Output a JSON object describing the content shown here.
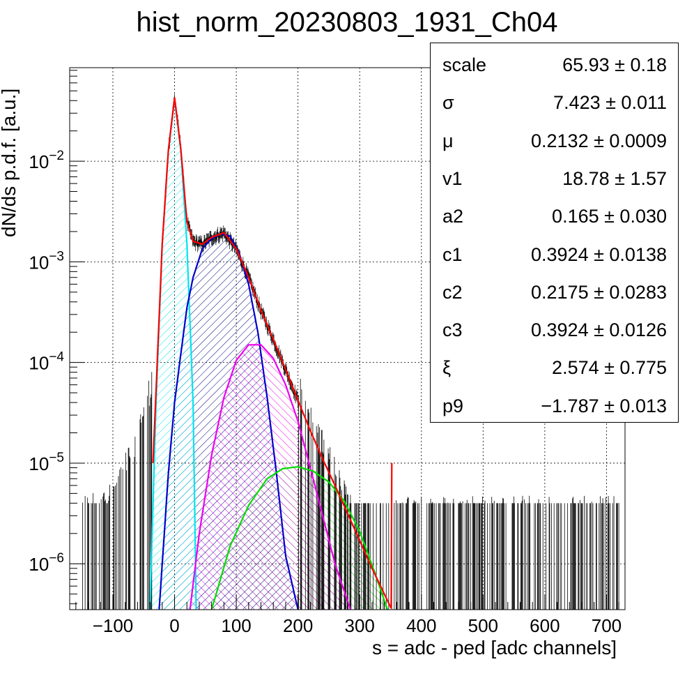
{
  "title": "hist_norm_20230803_1931_Ch04",
  "chart_data": {
    "type": "histogram_with_fit",
    "title": "hist_norm_20230803_1931_Ch04",
    "xlabel": "s = adc - ped [adc channels]",
    "ylabel": "dN/ds p.d.f. [a.u.]",
    "xlim": [
      -170,
      730
    ],
    "ylim": [
      3.5e-07,
      0.085
    ],
    "yscale": "log",
    "grid": true,
    "xticks": [
      -100,
      0,
      100,
      200,
      300,
      400,
      500,
      600,
      700
    ],
    "xtick_labels": [
      "−100",
      "0",
      "100",
      "200",
      "300",
      "400",
      "500",
      "600",
      "700"
    ],
    "yticks": [
      1e-06,
      1e-05,
      0.0001,
      0.001,
      0.01
    ],
    "ytick_labels": [
      {
        "base": "10",
        "exp": "−6"
      },
      {
        "base": "10",
        "exp": "−5"
      },
      {
        "base": "10",
        "exp": "−4"
      },
      {
        "base": "10",
        "exp": "−3"
      },
      {
        "base": "10",
        "exp": "−2"
      }
    ],
    "colors": {
      "data": "#000000",
      "total_fit": "#ff0000",
      "pedestal": "#00e5ee",
      "one_pe": "#0000cc",
      "two_pe": "#ee00ee",
      "three_pe": "#00dd00"
    },
    "components": [
      {
        "key": "pedestal",
        "x": [
          -40,
          -30,
          -20,
          -10,
          0,
          10,
          20,
          30,
          35
        ],
        "y": [
          3.5e-07,
          4e-05,
          0.0015,
          0.013,
          0.042,
          0.013,
          0.0015,
          4e-05,
          3.5e-07
        ]
      },
      {
        "key": "one_pe",
        "x": [
          -25,
          -10,
          0,
          10,
          20,
          30,
          45,
          60,
          75,
          90,
          105,
          120,
          135,
          150,
          165,
          180,
          200
        ],
        "y": [
          3.5e-07,
          8e-06,
          4e-05,
          0.00012,
          0.00035,
          0.0007,
          0.00135,
          0.0017,
          0.0019,
          0.0018,
          0.0012,
          0.0006,
          0.0002,
          4.5e-05,
          8e-06,
          1.2e-06,
          3.5e-07
        ]
      },
      {
        "key": "two_pe",
        "x": [
          25,
          40,
          60,
          80,
          100,
          120,
          140,
          160,
          180,
          200,
          220,
          240,
          260,
          285
        ],
        "y": [
          3.5e-07,
          2e-06,
          1.2e-05,
          4.5e-05,
          0.000105,
          0.00015,
          0.00015,
          0.00011,
          6e-05,
          2.6e-05,
          9e-06,
          3e-06,
          1e-06,
          3.5e-07
        ]
      },
      {
        "key": "three_pe",
        "x": [
          60,
          90,
          120,
          150,
          175,
          200,
          225,
          250,
          275,
          300,
          325,
          345
        ],
        "y": [
          3.5e-07,
          1.5e-06,
          3.8e-06,
          7e-06,
          8.8e-06,
          9.2e-06,
          8.3e-06,
          6.5e-06,
          4.2e-06,
          2.1e-06,
          8e-07,
          3.5e-07
        ]
      },
      {
        "key": "total_fit",
        "x": [
          -35,
          -20,
          -10,
          0,
          10,
          20,
          30,
          45,
          60,
          80,
          100,
          120,
          140,
          160,
          180,
          200,
          220,
          240,
          260,
          280,
          300,
          320,
          340,
          352
        ],
        "y": [
          1e-05,
          0.0015,
          0.013,
          0.043,
          0.0135,
          0.0025,
          0.0016,
          0.0015,
          0.00175,
          0.00195,
          0.00135,
          0.0007,
          0.00033,
          0.00017,
          8.5e-05,
          4.2e-05,
          2.1e-05,
          1.1e-05,
          6e-06,
          3.2e-06,
          1.7e-06,
          9e-07,
          5e-07,
          3.5e-07
        ]
      }
    ]
  },
  "stats": [
    {
      "name": "scale",
      "value": "65.93 ± 0.18"
    },
    {
      "name": "σ",
      "value": "7.423 ± 0.011"
    },
    {
      "name": "μ",
      "value": "0.2132 ± 0.0009"
    },
    {
      "name": "v1",
      "value": "18.78 ± 1.57"
    },
    {
      "name": "a2",
      "value": "0.165 ± 0.030"
    },
    {
      "name": "c1",
      "value": "0.3924 ± 0.0138"
    },
    {
      "name": "c2",
      "value": "0.2175 ± 0.0283"
    },
    {
      "name": "c3",
      "value": "0.3924 ± 0.0126"
    },
    {
      "name": "ξ",
      "value": "2.574 ± 0.775"
    },
    {
      "name": "p9",
      "value": "−1.787 ± 0.013"
    }
  ]
}
